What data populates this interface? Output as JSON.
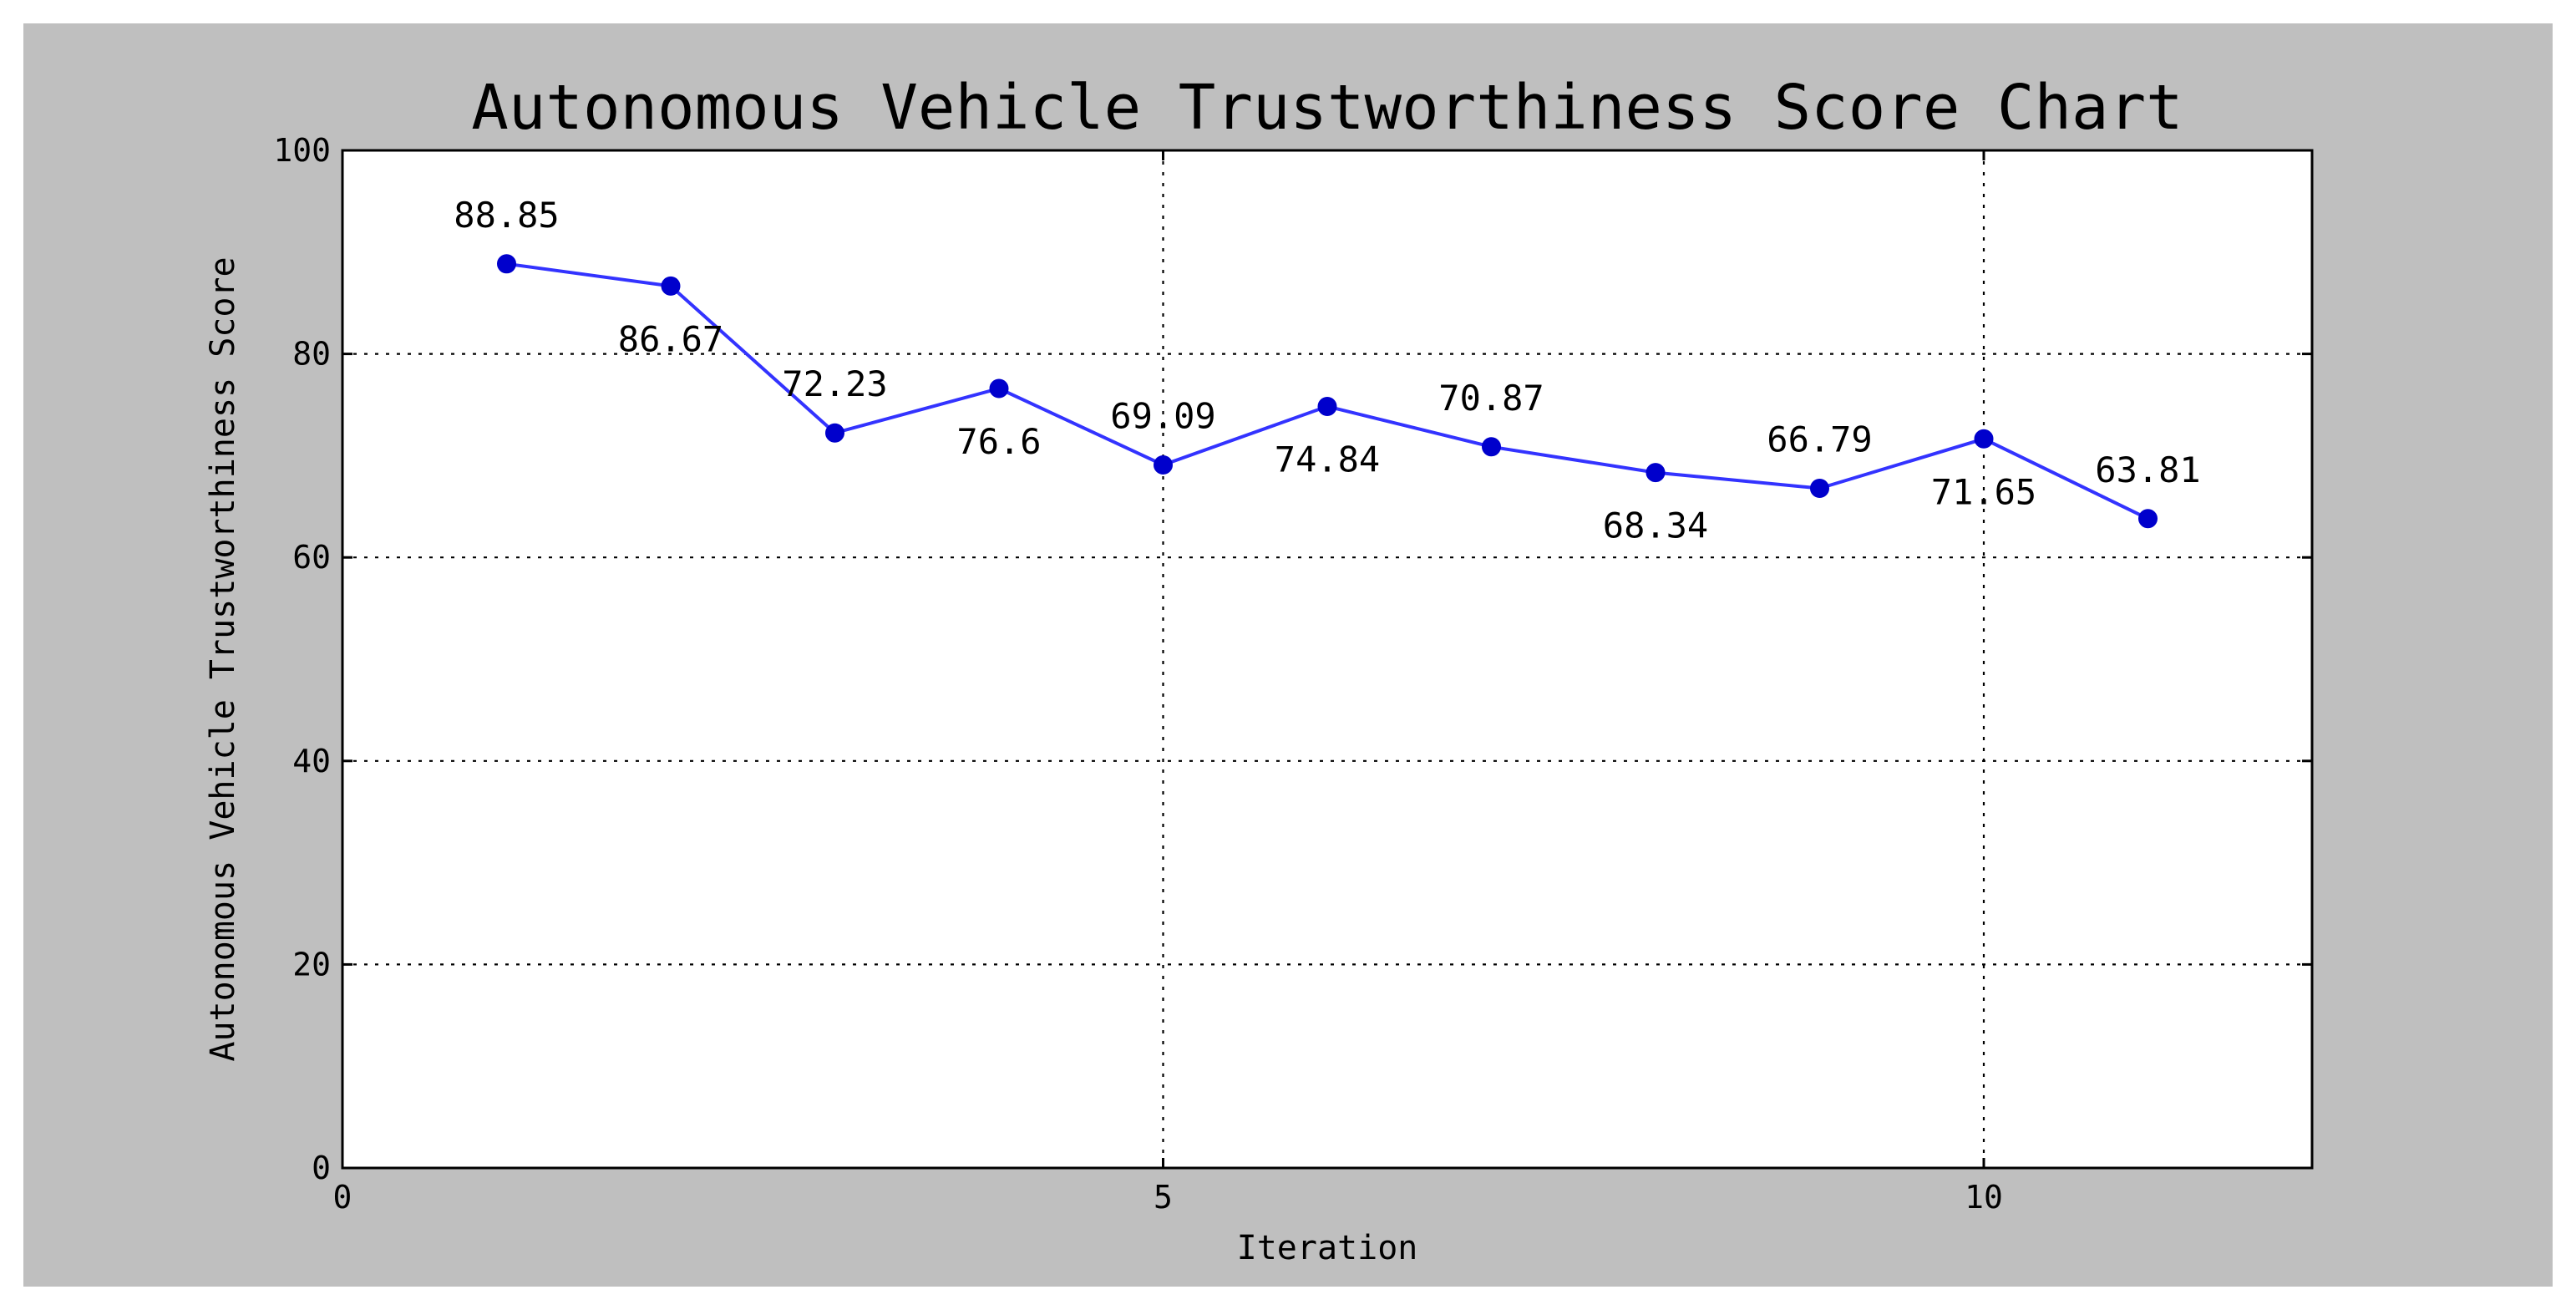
{
  "colors": {
    "frame_background": "#bfbfbf",
    "plot_background": "#ffffff",
    "line": "#3333ff",
    "marker": "#0000cc",
    "text": "#000000"
  },
  "chart_data": {
    "type": "line",
    "title": "Autonomous Vehicle Trustworthiness Score Chart",
    "xlabel": "Iteration",
    "ylabel": "Autonomous Vehicle Trustworthiness Score",
    "xlim": [
      0,
      12
    ],
    "ylim": [
      0,
      100
    ],
    "xticks": [
      0,
      5,
      10
    ],
    "xtick_labels": [
      "0",
      "5",
      "10"
    ],
    "yticks": [
      0,
      20,
      40,
      60,
      80,
      100
    ],
    "ytick_labels": [
      "0",
      "20",
      "40",
      "60",
      "80",
      "100"
    ],
    "grid": true,
    "x": [
      1,
      2,
      3,
      4,
      5,
      6,
      7,
      8,
      9,
      10,
      11
    ],
    "y": [
      88.85,
      86.67,
      72.23,
      76.6,
      69.09,
      74.84,
      70.87,
      68.34,
      66.79,
      71.65,
      63.81
    ],
    "data_labels": [
      "88.85",
      "86.67",
      "72.23",
      "76.6",
      "69.09",
      "74.84",
      "70.87",
      "68.34",
      "66.79",
      "71.65",
      "63.81"
    ],
    "data_label_positions": [
      "above",
      "below",
      "above",
      "below",
      "above",
      "below",
      "above",
      "below",
      "above",
      "below",
      "above"
    ]
  }
}
